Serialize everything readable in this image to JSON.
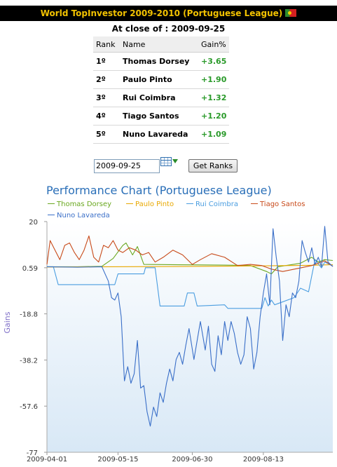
{
  "header": {
    "title": "World TopInvestor 2009-2010 (Portuguese League)"
  },
  "close_line": "At close of : 2009-09-25",
  "ranking": {
    "columns": [
      "Rank",
      "Name",
      "Gain%"
    ],
    "rows": [
      {
        "rank": "1º",
        "name": "Thomas Dorsey",
        "gain": "+3.65"
      },
      {
        "rank": "2º",
        "name": "Paulo Pinto",
        "gain": "+1.90"
      },
      {
        "rank": "3º",
        "name": "Rui Coimbra",
        "gain": "+1.32"
      },
      {
        "rank": "4º",
        "name": "Tiago Santos",
        "gain": "+1.20"
      },
      {
        "rank": "5º",
        "name": "Nuno Lavareda",
        "gain": "+1.09"
      }
    ]
  },
  "controls": {
    "date_value": "2009-09-25",
    "calendar_icon": "calendar-icon",
    "button_label": "Get Ranks"
  },
  "colors": {
    "header_bg": "#000000",
    "header_text": "#f2c200",
    "gain_positive": "#2a9a2a",
    "chart_title": "#2a6fb8"
  },
  "chart_data": {
    "type": "line",
    "title": "Performance Chart (Portuguese League)",
    "xlabel": "",
    "ylabel": "Gains",
    "x_ticks": [
      "2009-04-01",
      "2009-05-15",
      "2009-06-30",
      "2009-08-13"
    ],
    "y_ticks": [
      "20",
      "0.59",
      "-18.8",
      "-38.2",
      "-57.6",
      "-77"
    ],
    "ylim": [
      -77,
      20
    ],
    "xlim": [
      "2009-04-01",
      "2009-09-25"
    ],
    "legend": "top",
    "series": [
      {
        "name": "Thomas Dorsey",
        "color": "#6aa820",
        "points": [
          [
            "2009-04-01",
            1.0
          ],
          [
            "2009-04-20",
            1.0
          ],
          [
            "2009-05-05",
            1.2
          ],
          [
            "2009-05-12",
            4.5
          ],
          [
            "2009-05-18",
            10.0
          ],
          [
            "2009-05-20",
            11.0
          ],
          [
            "2009-05-24",
            6.0
          ],
          [
            "2009-05-27",
            9.5
          ],
          [
            "2009-05-31",
            2.0
          ],
          [
            "2009-06-30",
            1.8
          ],
          [
            "2009-07-20",
            1.7
          ],
          [
            "2009-08-05",
            1.5
          ],
          [
            "2009-08-15",
            -1.0
          ],
          [
            "2009-08-18",
            -2.0
          ],
          [
            "2009-08-22",
            1.0
          ],
          [
            "2009-09-05",
            2.5
          ],
          [
            "2009-09-12",
            5.0
          ],
          [
            "2009-09-16",
            3.0
          ],
          [
            "2009-09-20",
            4.0
          ],
          [
            "2009-09-25",
            3.65
          ]
        ]
      },
      {
        "name": "Paulo Pinto",
        "color": "#e8a800",
        "points": [
          [
            "2009-04-01",
            0.9
          ],
          [
            "2009-05-10",
            1.0
          ],
          [
            "2009-06-20",
            1.1
          ],
          [
            "2009-07-30",
            1.3
          ],
          [
            "2009-09-10",
            1.6
          ],
          [
            "2009-09-25",
            1.9
          ]
        ]
      },
      {
        "name": "Rui Coimbra",
        "color": "#4a9de0",
        "points": [
          [
            "2009-04-01",
            1.0
          ],
          [
            "2009-04-05",
            1.0
          ],
          [
            "2009-04-08",
            -6.5
          ],
          [
            "2009-05-10",
            -6.5
          ],
          [
            "2009-05-13",
            -6.5
          ],
          [
            "2009-05-15",
            -2.0
          ],
          [
            "2009-05-31",
            -2.0
          ],
          [
            "2009-06-01",
            0.6
          ],
          [
            "2009-06-07",
            0.6
          ],
          [
            "2009-06-10",
            -15.5
          ],
          [
            "2009-06-25",
            -15.5
          ],
          [
            "2009-06-27",
            -10.0
          ],
          [
            "2009-07-01",
            -10.0
          ],
          [
            "2009-07-03",
            -15.5
          ],
          [
            "2009-07-20",
            -15.0
          ],
          [
            "2009-07-22",
            -16.5
          ],
          [
            "2009-08-12",
            -16.5
          ],
          [
            "2009-08-14",
            -12.0
          ],
          [
            "2009-08-16",
            -15.5
          ],
          [
            "2009-08-18",
            -13.0
          ],
          [
            "2009-08-20",
            -15.0
          ],
          [
            "2009-09-01",
            -12.0
          ],
          [
            "2009-09-05",
            -8.0
          ],
          [
            "2009-09-10",
            -9.5
          ],
          [
            "2009-09-14",
            4.0
          ],
          [
            "2009-09-18",
            0.5
          ],
          [
            "2009-09-20",
            3.0
          ],
          [
            "2009-09-25",
            1.32
          ]
        ]
      },
      {
        "name": "Tiago Santos",
        "color": "#c84a1a",
        "points": [
          [
            "2009-04-01",
            2.0
          ],
          [
            "2009-04-03",
            12.0
          ],
          [
            "2009-04-06",
            8.0
          ],
          [
            "2009-04-09",
            4.0
          ],
          [
            "2009-04-12",
            10.0
          ],
          [
            "2009-04-15",
            11.0
          ],
          [
            "2009-04-18",
            7.0
          ],
          [
            "2009-04-21",
            4.0
          ],
          [
            "2009-04-24",
            8.0
          ],
          [
            "2009-04-27",
            14.0
          ],
          [
            "2009-04-30",
            5.0
          ],
          [
            "2009-05-03",
            3.0
          ],
          [
            "2009-05-06",
            10.0
          ],
          [
            "2009-05-09",
            9.0
          ],
          [
            "2009-05-12",
            12.0
          ],
          [
            "2009-05-15",
            8.0
          ],
          [
            "2009-05-18",
            7.0
          ],
          [
            "2009-05-22",
            9.0
          ],
          [
            "2009-05-26",
            8.0
          ],
          [
            "2009-05-30",
            6.0
          ],
          [
            "2009-06-03",
            7.0
          ],
          [
            "2009-06-07",
            3.0
          ],
          [
            "2009-06-12",
            5.0
          ],
          [
            "2009-06-18",
            8.0
          ],
          [
            "2009-06-24",
            6.0
          ],
          [
            "2009-06-30",
            2.0
          ],
          [
            "2009-07-05",
            4.0
          ],
          [
            "2009-07-12",
            6.5
          ],
          [
            "2009-07-20",
            5.0
          ],
          [
            "2009-07-28",
            1.5
          ],
          [
            "2009-08-05",
            2.0
          ],
          [
            "2009-08-12",
            1.5
          ],
          [
            "2009-08-18",
            0.0
          ],
          [
            "2009-08-25",
            -1.0
          ],
          [
            "2009-09-05",
            0.5
          ],
          [
            "2009-09-12",
            1.5
          ],
          [
            "2009-09-20",
            3.5
          ],
          [
            "2009-09-25",
            1.2
          ]
        ]
      },
      {
        "name": "Nuno Lavareda",
        "color": "#3a6fc8",
        "points": [
          [
            "2009-04-01",
            1.0
          ],
          [
            "2009-04-20",
            0.8
          ],
          [
            "2009-05-05",
            1.0
          ],
          [
            "2009-05-09",
            -5.0
          ],
          [
            "2009-05-11",
            -12.0
          ],
          [
            "2009-05-13",
            -13.0
          ],
          [
            "2009-05-15",
            -10.0
          ],
          [
            "2009-05-17",
            -20.0
          ],
          [
            "2009-05-19",
            -47.0
          ],
          [
            "2009-05-21",
            -41.0
          ],
          [
            "2009-05-23",
            -48.0
          ],
          [
            "2009-05-25",
            -44.0
          ],
          [
            "2009-05-27",
            -30.0
          ],
          [
            "2009-05-29",
            -50.0
          ],
          [
            "2009-05-31",
            -49.0
          ],
          [
            "2009-06-02",
            -60.0
          ],
          [
            "2009-06-04",
            -66.0
          ],
          [
            "2009-06-06",
            -58.0
          ],
          [
            "2009-06-08",
            -62.0
          ],
          [
            "2009-06-10",
            -52.0
          ],
          [
            "2009-06-12",
            -56.0
          ],
          [
            "2009-06-14",
            -48.0
          ],
          [
            "2009-06-16",
            -42.0
          ],
          [
            "2009-06-18",
            -47.0
          ],
          [
            "2009-06-20",
            -38.0
          ],
          [
            "2009-06-22",
            -35.0
          ],
          [
            "2009-06-24",
            -40.0
          ],
          [
            "2009-06-26",
            -32.0
          ],
          [
            "2009-06-28",
            -25.0
          ],
          [
            "2009-07-01",
            -38.0
          ],
          [
            "2009-07-03",
            -30.0
          ],
          [
            "2009-07-05",
            -22.0
          ],
          [
            "2009-07-08",
            -34.0
          ],
          [
            "2009-07-10",
            -24.0
          ],
          [
            "2009-07-12",
            -40.0
          ],
          [
            "2009-07-14",
            -43.0
          ],
          [
            "2009-07-16",
            -28.0
          ],
          [
            "2009-07-18",
            -36.0
          ],
          [
            "2009-07-20",
            -22.0
          ],
          [
            "2009-07-22",
            -30.0
          ],
          [
            "2009-07-24",
            -22.0
          ],
          [
            "2009-07-26",
            -27.0
          ],
          [
            "2009-07-28",
            -35.0
          ],
          [
            "2009-07-30",
            -40.0
          ],
          [
            "2009-08-01",
            -36.0
          ],
          [
            "2009-08-03",
            -20.0
          ],
          [
            "2009-08-05",
            -25.0
          ],
          [
            "2009-08-07",
            -42.0
          ],
          [
            "2009-08-09",
            -35.0
          ],
          [
            "2009-08-11",
            -20.0
          ],
          [
            "2009-08-13",
            -10.0
          ],
          [
            "2009-08-15",
            -2.0
          ],
          [
            "2009-08-17",
            -15.0
          ],
          [
            "2009-08-19",
            17.0
          ],
          [
            "2009-08-21",
            5.0
          ],
          [
            "2009-08-23",
            -5.0
          ],
          [
            "2009-08-25",
            -30.0
          ],
          [
            "2009-08-27",
            -15.0
          ],
          [
            "2009-08-29",
            -20.0
          ],
          [
            "2009-08-31",
            -10.0
          ],
          [
            "2009-09-02",
            -12.0
          ],
          [
            "2009-09-04",
            -5.0
          ],
          [
            "2009-09-06",
            12.0
          ],
          [
            "2009-09-08",
            7.0
          ],
          [
            "2009-09-10",
            3.0
          ],
          [
            "2009-09-12",
            9.0
          ],
          [
            "2009-09-14",
            2.0
          ],
          [
            "2009-09-16",
            5.0
          ],
          [
            "2009-09-18",
            1.0
          ],
          [
            "2009-09-20",
            18.0
          ],
          [
            "2009-09-22",
            3.0
          ],
          [
            "2009-09-25",
            1.09
          ]
        ]
      }
    ]
  }
}
